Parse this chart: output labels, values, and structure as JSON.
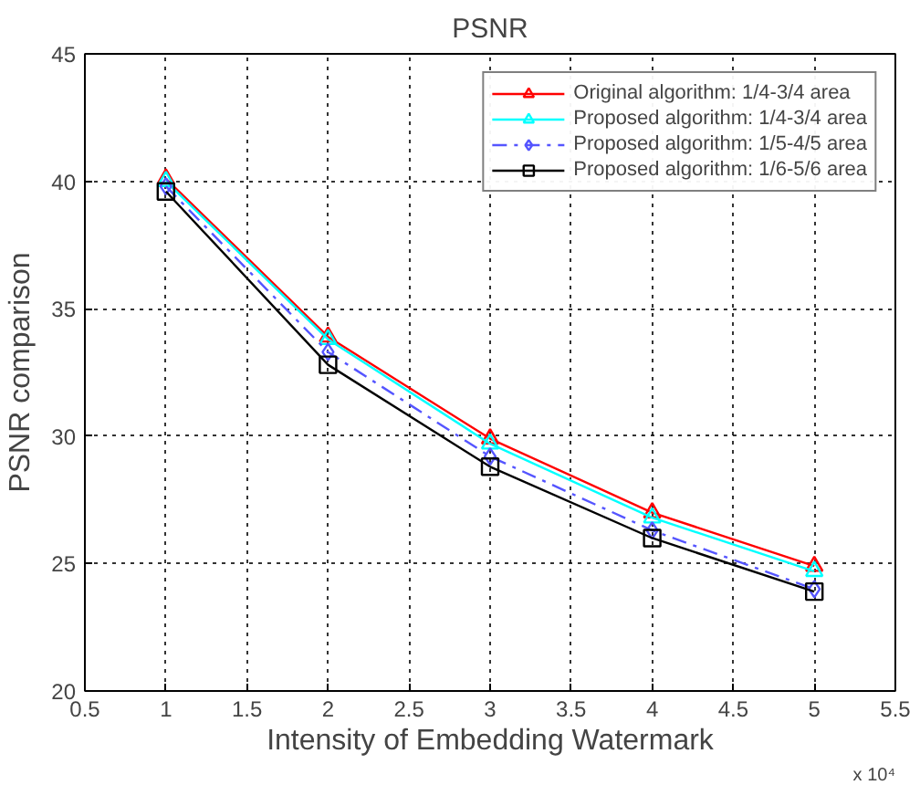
{
  "chart_data": {
    "type": "line",
    "title": "PSNR",
    "xlabel": "Intensity of Embedding Watermark",
    "ylabel": "PSNR comparison",
    "x": [
      1,
      2,
      3,
      4,
      5
    ],
    "series": [
      {
        "name": "Original algorithm: 1/4-3/4 area",
        "color": "#ff0000",
        "marker": "triangle",
        "line_style": "solid",
        "values": [
          40.1,
          33.9,
          29.9,
          27.0,
          24.9
        ]
      },
      {
        "name": "Proposed algorithm: 1/4-3/4 area",
        "color": "#00ffff",
        "marker": "triangle",
        "line_style": "solid",
        "values": [
          40.0,
          33.8,
          29.7,
          26.8,
          24.7
        ]
      },
      {
        "name": "Proposed algorithm: 1/5-4/5 area",
        "color": "#5555ff",
        "marker": "diamond",
        "line_style": "dashed",
        "values": [
          39.8,
          33.3,
          29.2,
          26.3,
          24.0
        ]
      },
      {
        "name": "Proposed algorithm: 1/6-5/6 area",
        "color": "#000000",
        "marker": "square",
        "line_style": "solid",
        "values": [
          39.6,
          32.8,
          28.8,
          26.0,
          23.9
        ]
      }
    ],
    "xlim": [
      0.5,
      5.5
    ],
    "xticks": [
      0.5,
      1,
      1.5,
      2,
      2.5,
      3,
      3.5,
      4,
      4.5,
      5,
      5.5
    ],
    "ylim": [
      20,
      45
    ],
    "yticks": [
      20,
      25,
      30,
      35,
      40,
      45
    ],
    "annotations": [
      "x 10⁴"
    ],
    "grid": true,
    "legend": "top right"
  }
}
